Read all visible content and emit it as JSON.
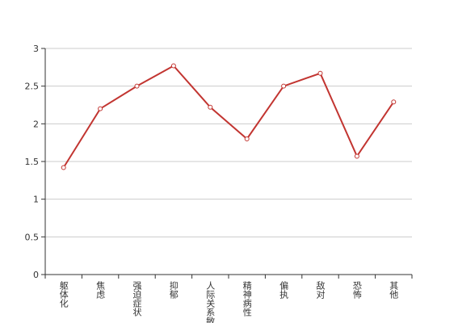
{
  "chart_data": {
    "type": "line",
    "categories": [
      "躯体化",
      "焦虑",
      "强迫症状",
      "抑郁",
      "人际关系敏感",
      "精神病性",
      "偏执",
      "敌对",
      "恐怖",
      "其他"
    ],
    "series": [
      {
        "color": "#c23531",
        "values": [
          1.42,
          2.2,
          2.5,
          2.77,
          2.22,
          1.8,
          2.5,
          2.67,
          1.57,
          2.29
        ]
      }
    ],
    "ylim": [
      0,
      3
    ],
    "yticks": [
      0,
      0.5,
      1,
      1.5,
      2,
      2.5,
      3
    ],
    "grid": true
  }
}
